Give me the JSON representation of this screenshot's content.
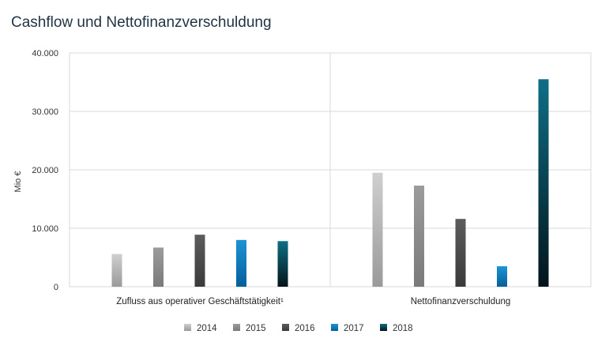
{
  "chart_data": {
    "type": "bar",
    "title": "Cashflow und Nettofinanzverschuldung",
    "ylabel": "Mio €",
    "xlabel": "",
    "ylim": [
      0,
      40000
    ],
    "yticks": [
      0,
      10000,
      20000,
      30000,
      40000
    ],
    "ytick_labels": [
      "0",
      "10.000",
      "20.000",
      "30.000",
      "40.000"
    ],
    "categories": [
      "Zufluss aus operativer Geschäftstätigkeit¹",
      "Nettofinanzverschuldung"
    ],
    "series": [
      {
        "name": "2014",
        "color": "#b3b3b3",
        "values": [
          5600,
          19500
        ]
      },
      {
        "name": "2015",
        "color": "#8c8c8c",
        "values": [
          6700,
          17300
        ]
      },
      {
        "name": "2016",
        "color": "#4d4d4d",
        "values": [
          8900,
          11600
        ]
      },
      {
        "name": "2017",
        "color": "#0a7fc4",
        "values": [
          8000,
          3500
        ]
      },
      {
        "name": "2018",
        "color": "#0a3b4a",
        "values": [
          7800,
          35500
        ]
      }
    ],
    "gradients": {
      "2014": [
        "#cfcfcf",
        "#9a9a9a"
      ],
      "2015": [
        "#9c9c9c",
        "#7a7a7a"
      ],
      "2016": [
        "#5c5c5c",
        "#3a3a3a"
      ],
      "2017": [
        "#1a94d6",
        "#065f99"
      ],
      "2018": [
        "#0e6f86",
        "#03141b"
      ]
    },
    "grid": true,
    "legend_position": "bottom"
  }
}
